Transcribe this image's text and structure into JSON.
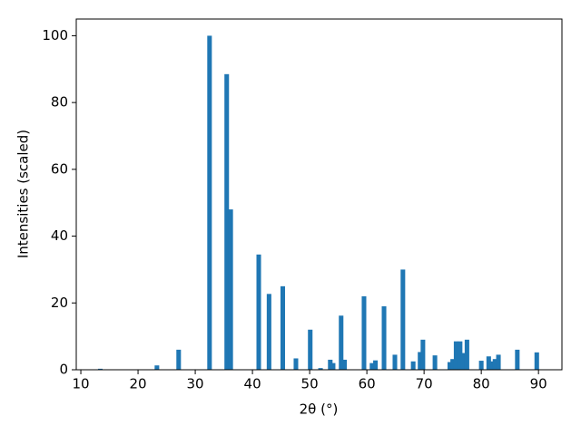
{
  "chart_data": {
    "type": "bar",
    "xlabel": "2θ (°)",
    "ylabel": "Intensities (scaled)",
    "color": "#1f77b4",
    "x": [
      13.4,
      23.3,
      27.1,
      32.5,
      35.5,
      36.2,
      41.1,
      42.9,
      45.3,
      47.6,
      50.1,
      51.9,
      53.6,
      54.1,
      55.5,
      56.1,
      59.5,
      60.9,
      61.5,
      63.0,
      64.9,
      66.3,
      68.1,
      69.3,
      69.8,
      71.9,
      74.5,
      75.0,
      75.6,
      76.3,
      76.8,
      77.5,
      80.0,
      81.3,
      81.9,
      82.4,
      83.0,
      86.3,
      89.7
    ],
    "values": [
      0.3,
      1.3,
      6,
      100,
      88.5,
      48,
      34.5,
      22.7,
      25,
      3.4,
      12,
      0.5,
      3,
      2,
      16.2,
      3,
      22,
      2,
      2.8,
      19,
      4.5,
      30,
      2.5,
      5.3,
      9,
      4.3,
      2.3,
      3.2,
      8.5,
      8.5,
      5,
      9,
      2.7,
      4,
      2.5,
      3.2,
      4.5,
      6,
      5.2
    ],
    "xlim": [
      9.2,
      94.1
    ],
    "xticks": [
      10,
      20,
      30,
      40,
      50,
      60,
      70,
      80,
      90
    ],
    "ylim": [
      0,
      105
    ],
    "yticks": [
      0,
      20,
      40,
      60,
      80,
      100
    ]
  }
}
